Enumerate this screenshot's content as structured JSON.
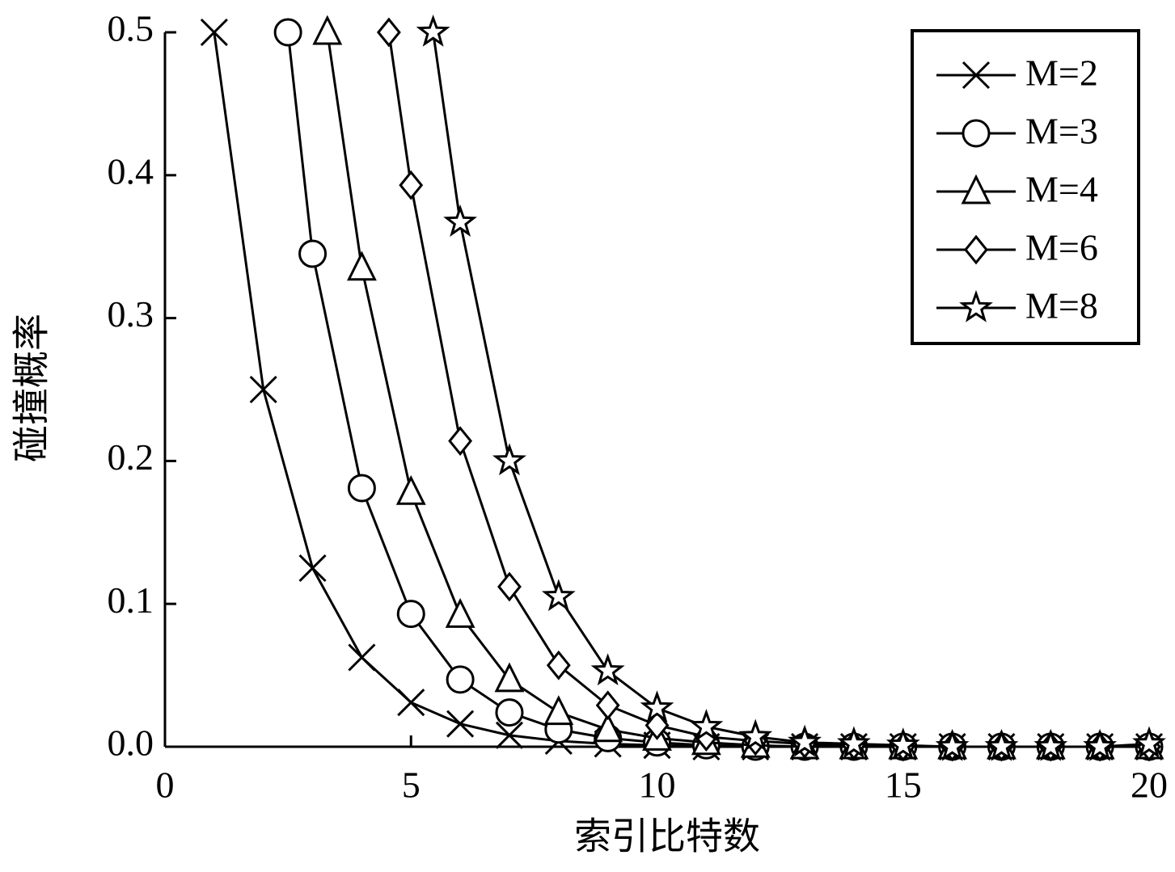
{
  "chart_data": {
    "type": "line",
    "x_label": "索引比特数",
    "y_label": "碰撞概率",
    "xlim": [
      0,
      20
    ],
    "xticks": [
      0,
      5,
      10,
      15,
      20
    ],
    "ylim": [
      0,
      0.5
    ],
    "yticks": [
      {
        "value": 0,
        "label": "0.0"
      },
      0.1,
      0.2,
      0.3,
      0.4,
      0.5
    ],
    "legend": "upper right",
    "grid": false,
    "series": [
      {
        "name": "M=2",
        "color": "#000000",
        "marker": "x",
        "x": [
          1,
          2,
          3,
          4,
          5,
          6,
          7,
          8,
          9,
          10,
          11,
          12,
          13,
          14,
          15,
          16,
          17,
          18,
          19,
          20
        ],
        "values": [
          0.5,
          0.25,
          0.125,
          0.0625,
          0.031,
          0.016,
          0.008,
          0.004,
          0.002,
          0.001,
          0,
          0,
          0,
          0,
          0,
          0,
          0,
          0,
          0,
          0
        ]
      },
      {
        "name": "M=3",
        "color": "#000000",
        "marker": "circle",
        "x": [
          2.5,
          3,
          4,
          5,
          6,
          7,
          8,
          9,
          10,
          11,
          12,
          13,
          14,
          15,
          16,
          17,
          18,
          19,
          20
        ],
        "values": [
          0.5,
          0.345,
          0.181,
          0.093,
          0.047,
          0.024,
          0.012,
          0.006,
          0.003,
          0.001,
          0,
          0,
          0,
          0,
          0,
          0,
          0,
          0,
          0
        ]
      },
      {
        "name": "M=4",
        "color": "#000000",
        "marker": "triangle",
        "x": [
          3.3,
          4,
          5,
          6,
          7,
          8,
          9,
          10,
          11,
          12,
          13,
          14,
          15,
          16,
          17,
          18,
          19,
          20
        ],
        "values": [
          0.5,
          0.335,
          0.178,
          0.092,
          0.047,
          0.024,
          0.012,
          0.006,
          0.003,
          0.001,
          0,
          0,
          0,
          0,
          0,
          0,
          0,
          0
        ]
      },
      {
        "name": "M=6",
        "color": "#000000",
        "marker": "diamond",
        "x": [
          4.55,
          5,
          6,
          7,
          8,
          9,
          10,
          11,
          12,
          13,
          14,
          15,
          16,
          17,
          18,
          19,
          20
        ],
        "values": [
          0.5,
          0.393,
          0.214,
          0.112,
          0.057,
          0.029,
          0.015,
          0.007,
          0.004,
          0.002,
          0.001,
          0,
          0,
          0,
          0,
          0,
          0
        ]
      },
      {
        "name": "M=8",
        "color": "#000000",
        "marker": "star",
        "x": [
          5.45,
          6,
          7,
          8,
          9,
          10,
          11,
          12,
          13,
          14,
          15,
          16,
          17,
          18,
          19,
          20
        ],
        "values": [
          0.5,
          0.367,
          0.2,
          0.105,
          0.053,
          0.027,
          0.014,
          0.007,
          0.003,
          0.002,
          0.001,
          0,
          0,
          0,
          0,
          0.002
        ]
      }
    ]
  }
}
